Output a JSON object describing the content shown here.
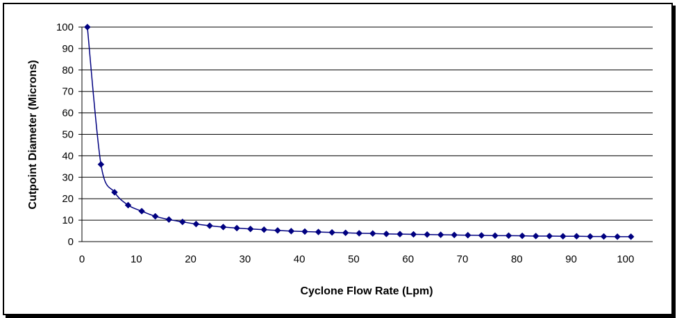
{
  "chart_data": {
    "type": "line",
    "title": "",
    "xlabel": "Cyclone Flow Rate (Lpm)",
    "ylabel": "Cutpoint Diameter (Microns)",
    "xlim": [
      0,
      105
    ],
    "ylim": [
      0,
      100
    ],
    "xticks": [
      0,
      10,
      20,
      30,
      40,
      50,
      60,
      70,
      80,
      90,
      100
    ],
    "yticks": [
      0,
      10,
      20,
      30,
      40,
      50,
      60,
      70,
      80,
      90,
      100
    ],
    "grid": "horizontal",
    "legend": "none",
    "line_color": "#000080",
    "marker": "diamond",
    "series": [
      {
        "x": [
          1,
          3.5,
          6,
          8.5,
          11,
          13.5,
          16,
          18.5,
          21,
          23.5,
          26,
          28.5,
          31,
          33.5,
          36,
          38.5,
          41,
          43.5,
          46,
          48.5,
          51,
          53.5,
          56,
          58.5,
          61,
          63.5,
          66,
          68.5,
          71,
          73.5,
          76,
          78.5,
          81,
          83.5,
          86,
          88.5,
          91,
          93.5,
          96,
          98.5,
          101
        ],
        "y": [
          100,
          36,
          23,
          17,
          14.2,
          11.8,
          10.3,
          9.2,
          8.2,
          7.4,
          6.8,
          6.3,
          5.9,
          5.6,
          5.2,
          4.9,
          4.7,
          4.5,
          4.3,
          4.1,
          3.9,
          3.8,
          3.6,
          3.5,
          3.4,
          3.3,
          3.2,
          3.1,
          3.0,
          2.9,
          2.8,
          2.8,
          2.7,
          2.6,
          2.6,
          2.5,
          2.5,
          2.4,
          2.4,
          2.3,
          2.3
        ]
      }
    ]
  }
}
